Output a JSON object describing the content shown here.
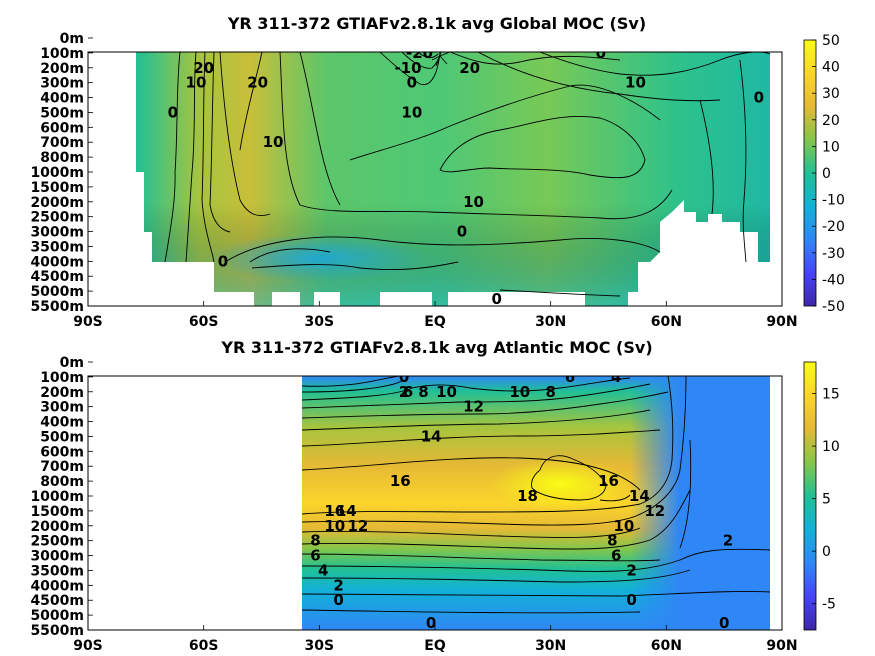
{
  "colors": {
    "colormap": [
      "#3e26a8",
      "#4743f8",
      "#2f87f5",
      "#12b1d7",
      "#21c095",
      "#85c64a",
      "#e5b935",
      "#fbd52b",
      "#f9fb14"
    ],
    "missing": "#ffffff",
    "contour": "#000000"
  },
  "chart_data": [
    {
      "type": "heatmap",
      "title": "YR 311-372 GTIAFv2.8.1k avg  Global MOC (Sv)",
      "x_ticks": [
        "90S",
        "60S",
        "30S",
        "EQ",
        "30N",
        "60N",
        "90N"
      ],
      "x_tick_values": [
        -90,
        -60,
        -30,
        0,
        30,
        60,
        90
      ],
      "xlim": [
        -90,
        90
      ],
      "y_ticks": [
        "0m",
        "100m",
        "200m",
        "300m",
        "400m",
        "500m",
        "600m",
        "700m",
        "800m",
        "1000m",
        "1500m",
        "2000m",
        "2500m",
        "3000m",
        "3500m",
        "4000m",
        "4500m",
        "5000m",
        "5500m"
      ],
      "colorbar_ticks": [
        "50",
        "40",
        "30",
        "20",
        "10",
        "0",
        "-10",
        "-20",
        "-30",
        "-40",
        "-50"
      ],
      "clim": [
        -50,
        50
      ],
      "grid": false,
      "colorbar": "right",
      "data_lat_range": [
        -79,
        88
      ],
      "contour_labels": [
        {
          "text": "-20",
          "lat": -4,
          "depth": "100m"
        },
        {
          "text": "-10",
          "lat": -7,
          "depth": "200m"
        },
        {
          "text": "0",
          "lat": -6,
          "depth": "300m"
        },
        {
          "text": "20",
          "lat": 9,
          "depth": "200m"
        },
        {
          "text": "0",
          "lat": 43,
          "depth": "100m"
        },
        {
          "text": "10",
          "lat": -6,
          "depth": "500m"
        },
        {
          "text": "10",
          "lat": 52,
          "depth": "300m"
        },
        {
          "text": "0",
          "lat": 84,
          "depth": "400m"
        },
        {
          "text": "20",
          "lat": -60,
          "depth": "200m"
        },
        {
          "text": "10",
          "lat": -62,
          "depth": "300m"
        },
        {
          "text": "0",
          "lat": -68,
          "depth": "500m"
        },
        {
          "text": "20",
          "lat": -46,
          "depth": "300m"
        },
        {
          "text": "10",
          "lat": -42,
          "depth": "700m"
        },
        {
          "text": "10",
          "lat": 10,
          "depth": "2000m"
        },
        {
          "text": "0",
          "lat": 7,
          "depth": "3000m"
        },
        {
          "text": "0",
          "lat": -55,
          "depth": "4000m"
        },
        {
          "text": "0",
          "lat": 16,
          "depth": "5500m"
        }
      ]
    },
    {
      "type": "heatmap",
      "title": "YR 311-372 GTIAFv2.8.1k avg  Atlantic MOC (Sv)",
      "x_ticks": [
        "90S",
        "60S",
        "30S",
        "EQ",
        "30N",
        "60N",
        "90N"
      ],
      "x_tick_values": [
        -90,
        -60,
        -30,
        0,
        30,
        60,
        90
      ],
      "xlim": [
        -90,
        90
      ],
      "y_ticks": [
        "0m",
        "100m",
        "200m",
        "300m",
        "400m",
        "500m",
        "600m",
        "700m",
        "800m",
        "1000m",
        "1500m",
        "2000m",
        "2500m",
        "3000m",
        "3500m",
        "4000m",
        "4500m",
        "5000m",
        "5500m"
      ],
      "colorbar_ticks": [
        "15",
        "10",
        "5",
        "0",
        "-5"
      ],
      "colorbar_tick_values": [
        15,
        10,
        5,
        0,
        -5
      ],
      "clim": [
        -7.5,
        18
      ],
      "grid": false,
      "colorbar": "right",
      "data_lat_range": [
        -35,
        88
      ],
      "contour_labels": [
        {
          "text": "0",
          "lat": -8,
          "depth": "100m"
        },
        {
          "text": "2",
          "lat": -8,
          "depth": "200m"
        },
        {
          "text": "6",
          "lat": -7,
          "depth": "200m"
        },
        {
          "text": "8",
          "lat": -3,
          "depth": "200m"
        },
        {
          "text": "10",
          "lat": 3,
          "depth": "200m"
        },
        {
          "text": "10",
          "lat": 22,
          "depth": "200m"
        },
        {
          "text": "8",
          "lat": 30,
          "depth": "200m"
        },
        {
          "text": "6",
          "lat": 35,
          "depth": "100m"
        },
        {
          "text": "4",
          "lat": 47,
          "depth": "100m"
        },
        {
          "text": "12",
          "lat": 10,
          "depth": "300m"
        },
        {
          "text": "14",
          "lat": -1,
          "depth": "500m"
        },
        {
          "text": "16",
          "lat": -9,
          "depth": "800m"
        },
        {
          "text": "18",
          "lat": 24,
          "depth": "1000m"
        },
        {
          "text": "16",
          "lat": 45,
          "depth": "800m"
        },
        {
          "text": "14",
          "lat": 53,
          "depth": "1000m"
        },
        {
          "text": "12",
          "lat": 57,
          "depth": "1500m"
        },
        {
          "text": "10",
          "lat": 49,
          "depth": "2000m"
        },
        {
          "text": "8",
          "lat": 46,
          "depth": "2500m"
        },
        {
          "text": "6",
          "lat": 47,
          "depth": "3000m"
        },
        {
          "text": "2",
          "lat": 51,
          "depth": "3500m"
        },
        {
          "text": "16",
          "lat": -26,
          "depth": "1500m"
        },
        {
          "text": "14",
          "lat": -23,
          "depth": "1500m"
        },
        {
          "text": "12",
          "lat": -20,
          "depth": "2000m"
        },
        {
          "text": "10",
          "lat": -26,
          "depth": "2000m"
        },
        {
          "text": "8",
          "lat": -31,
          "depth": "2500m"
        },
        {
          "text": "6",
          "lat": -31,
          "depth": "3000m"
        },
        {
          "text": "4",
          "lat": -29,
          "depth": "3500m"
        },
        {
          "text": "2",
          "lat": -25,
          "depth": "4000m"
        },
        {
          "text": "0",
          "lat": -25,
          "depth": "4500m"
        },
        {
          "text": "0",
          "lat": 51,
          "depth": "4500m"
        },
        {
          "text": "2",
          "lat": 76,
          "depth": "2500m"
        },
        {
          "text": "0",
          "lat": -1,
          "depth": "5500m"
        },
        {
          "text": "0",
          "lat": 75,
          "depth": "5500m"
        }
      ]
    }
  ]
}
